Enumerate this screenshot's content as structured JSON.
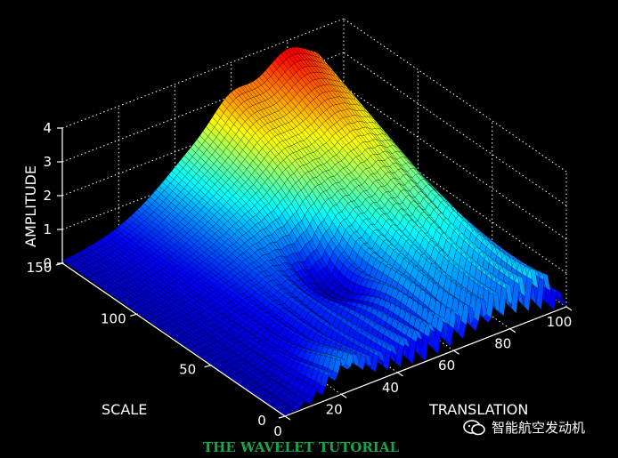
{
  "chart_data": {
    "type": "surface",
    "title": "",
    "xlabel": "TRANSLATION",
    "ylabel": "SCALE",
    "zlabel": "AMPLITUDE",
    "xlim": [
      0,
      100
    ],
    "ylim": [
      0,
      150
    ],
    "zlim": [
      0,
      4
    ],
    "x_ticks": [
      "0",
      "20",
      "40",
      "60",
      "80",
      "100"
    ],
    "y_ticks": [
      "0",
      "50",
      "100",
      "150"
    ],
    "z_ticks": [
      "0",
      "1",
      "2",
      "3",
      "4"
    ],
    "grid": true,
    "colormap": "jet",
    "surface_samples": [
      {
        "translation": 10,
        "scale": 140,
        "amplitude": 0.3
      },
      {
        "translation": 50,
        "scale": 140,
        "amplitude": 3.2
      },
      {
        "translation": 80,
        "scale": 140,
        "amplitude": 3.3
      },
      {
        "translation": 95,
        "scale": 140,
        "amplitude": 3.0
      },
      {
        "translation": 50,
        "scale": 75,
        "amplitude": 1.2
      },
      {
        "translation": 85,
        "scale": 60,
        "amplitude": 2.6
      },
      {
        "translation": 20,
        "scale": 5,
        "amplitude": 0.8
      },
      {
        "translation": 60,
        "scale": 5,
        "amplitude": 1.3
      },
      {
        "translation": 95,
        "scale": 5,
        "amplitude": 1.6
      }
    ]
  },
  "caption": "THE WAVELET TUTORIAL",
  "watermark": {
    "text": "智能航空发动机",
    "icon": "wechat-icon"
  },
  "colors": {
    "background": "#000000",
    "caption": "#1aa34a",
    "axes": "#ffffff"
  }
}
